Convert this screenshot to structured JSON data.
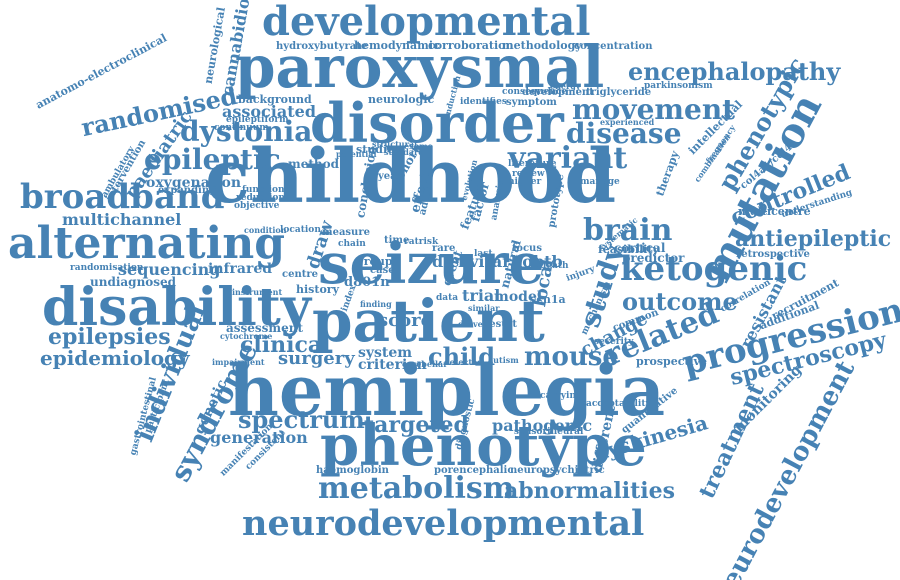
{
  "accent_color": "#4682b4",
  "words": [
    {
      "text": "childhood",
      "weight": 10
    },
    {
      "text": "hemiplegia",
      "weight": 9.6
    },
    {
      "text": "seizure",
      "weight": 9.2
    },
    {
      "text": "patient",
      "weight": 8.4
    },
    {
      "text": "paroxysmal",
      "weight": 8
    },
    {
      "text": "disorder",
      "weight": 7.6
    },
    {
      "text": "phenotype",
      "weight": 7.6
    },
    {
      "text": "disability",
      "weight": 7.4
    },
    {
      "text": "alternating",
      "weight": 6.6
    },
    {
      "text": "developmental",
      "weight": 6
    },
    {
      "text": "neurodevelopmental",
      "weight": 5.6
    },
    {
      "text": "mutation",
      "weight": 5.4
    },
    {
      "text": "progression",
      "weight": 4.8
    },
    {
      "text": "broadband",
      "weight": 4.8
    },
    {
      "text": "ketogenic",
      "weight": 4.8
    },
    {
      "text": "related",
      "weight": 4.6
    },
    {
      "text": "metabolism",
      "weight": 4.4
    },
    {
      "text": "brain",
      "weight": 4.2
    },
    {
      "text": "study",
      "weight": 4.2
    },
    {
      "text": "syndrome",
      "weight": 4
    },
    {
      "text": "individual",
      "weight": 4
    },
    {
      "text": "movement",
      "weight": 4
    },
    {
      "text": "variant",
      "weight": 4
    },
    {
      "text": "dystonia",
      "weight": 4
    },
    {
      "text": "epileptic",
      "weight": 4
    },
    {
      "text": "disease",
      "weight": 3.8
    },
    {
      "text": "neurodevelopment",
      "weight": 3.8
    },
    {
      "text": "encephalopathy",
      "weight": 3.6
    },
    {
      "text": "randomised",
      "weight": 3.6
    },
    {
      "text": "antiepileptic",
      "weight": 3.6
    },
    {
      "text": "phenotypic",
      "weight": 3.6
    },
    {
      "text": "mouse",
      "weight": 3.6
    },
    {
      "text": "outcome",
      "weight": 3.6
    },
    {
      "text": "spectrum",
      "weight": 3.6
    },
    {
      "text": "treatment",
      "weight": 3.4
    },
    {
      "text": "spectroscopy",
      "weight": 3.4
    },
    {
      "text": "abnormalities",
      "weight": 3.4
    },
    {
      "text": "controlled",
      "weight": 3.2
    },
    {
      "text": "clinical",
      "weight": 3.2
    },
    {
      "text": "epilepsies",
      "weight": 3.2
    },
    {
      "text": "targeted",
      "weight": 3.2
    },
    {
      "text": "child",
      "weight": 3.2
    },
    {
      "text": "epidemiology",
      "weight": 3
    },
    {
      "text": "dyskinesia",
      "weight": 3
    },
    {
      "text": "surgery",
      "weight": 2.8
    },
    {
      "text": "paediatric",
      "weight": 2.6
    },
    {
      "text": "resistant",
      "weight": 2.6
    },
    {
      "text": "local",
      "weight": 2.6
    },
    {
      "text": "multichannel",
      "weight": 2.6
    },
    {
      "text": "sequencing",
      "weight": 2.6
    },
    {
      "text": "change",
      "weight": 2.6
    },
    {
      "text": "score",
      "weight": 2.6
    },
    {
      "text": "generation",
      "weight": 2.4
    },
    {
      "text": "pathogenic",
      "weight": 2.4
    },
    {
      "text": "different",
      "weight": 2.4
    },
    {
      "text": "genetic",
      "weight": 2.4
    },
    {
      "text": "monitoring",
      "weight": 2.4
    },
    {
      "text": "associated",
      "weight": 2.4
    },
    {
      "text": "draw",
      "weight": 2.4
    },
    {
      "text": "kvitarhobtb",
      "weight": 2.4
    },
    {
      "text": "diet",
      "weight": 2.4
    },
    {
      "text": "cannabidiol",
      "weight": 2.2
    },
    {
      "text": "oxygenation",
      "weight": 2.2
    },
    {
      "text": "infrared",
      "weight": 2.2
    },
    {
      "text": "system",
      "weight": 2.2
    },
    {
      "text": "criterion",
      "weight": 2.2
    },
    {
      "text": "trial",
      "weight": 2.2
    },
    {
      "text": "assessment",
      "weight": 2
    },
    {
      "text": "undiagnosed",
      "weight": 2
    },
    {
      "text": "conclusion",
      "weight": 2
    },
    {
      "text": "prospective",
      "weight": 2
    },
    {
      "text": "predictor",
      "weight": 2
    },
    {
      "text": "cortical",
      "weight": 2
    },
    {
      "text": "additional",
      "weight": 2
    },
    {
      "text": "recruitment",
      "weight": 2
    },
    {
      "text": "feature",
      "weight": 2
    },
    {
      "text": "model",
      "weight": 2
    },
    {
      "text": "neurological",
      "weight": 1.8
    },
    {
      "text": "background",
      "weight": 1.8
    },
    {
      "text": "neurologic",
      "weight": 1.8
    },
    {
      "text": "methodology",
      "weight": 1.8
    },
    {
      "text": "hemodynamic",
      "weight": 1.8
    },
    {
      "text": "corroboration",
      "weight": 1.8
    },
    {
      "text": "method",
      "weight": 1.8
    },
    {
      "text": "history",
      "weight": 1.8
    },
    {
      "text": "group",
      "weight": 1.8
    },
    {
      "text": "d801n",
      "weight": 1.8
    },
    {
      "text": "scn1a",
      "weight": 1.8
    },
    {
      "text": "multicentre",
      "weight": 1.8
    },
    {
      "text": "feasibility",
      "weight": 1.8
    },
    {
      "text": "focus",
      "weight": 1.8
    },
    {
      "text": "development",
      "weight": 1.6
    },
    {
      "text": "concentration",
      "weight": 1.6
    },
    {
      "text": "hydroxybutyrate",
      "weight": 1.6
    },
    {
      "text": "triglyceride",
      "weight": 1.6
    },
    {
      "text": "anatomo-electroclinical",
      "weight": 1.6
    },
    {
      "text": "symptom",
      "weight": 1.6
    },
    {
      "text": "year",
      "weight": 1.6
    },
    {
      "text": "studies",
      "weight": 1.6
    },
    {
      "text": "time",
      "weight": 1.6
    },
    {
      "text": "rare",
      "weight": 1.6
    },
    {
      "text": "case",
      "weight": 1.6
    },
    {
      "text": "centre",
      "weight": 1.6
    },
    {
      "text": "result",
      "weight": 1.6
    },
    {
      "text": "haemoglobin",
      "weight": 1.6
    },
    {
      "text": "porencephalic",
      "weight": 1.6
    },
    {
      "text": "retrospective",
      "weight": 1.6
    },
    {
      "text": "quantitative",
      "weight": 1.6
    },
    {
      "text": "intellectual",
      "weight": 1.6
    },
    {
      "text": "therapy",
      "weight": 1.6
    },
    {
      "text": "col4a1/col4a",
      "weight": 1.6
    },
    {
      "text": "function",
      "weight": 1.4
    },
    {
      "text": "reduction",
      "weight": 1.4
    },
    {
      "text": "objective",
      "weight": 1.4
    },
    {
      "text": "expanding",
      "weight": 1.4
    },
    {
      "text": "continuum",
      "weight": 1.4
    },
    {
      "text": "randomisation",
      "weight": 1.4
    },
    {
      "text": "epileptiform",
      "weight": 1.4
    },
    {
      "text": "ambulatory",
      "weight": 1.4
    },
    {
      "text": "intervention",
      "weight": 1.4
    },
    {
      "text": "gastrointestinal",
      "weight": 1.4
    },
    {
      "text": "participant",
      "weight": 1.4
    },
    {
      "text": "diagnostic",
      "weight": 1.4
    },
    {
      "text": "manifestation",
      "weight": 1.4
    },
    {
      "text": "consistent",
      "weight": 1.4
    },
    {
      "text": "neuropsychiatric",
      "weight": 1.4
    },
    {
      "text": "sensorineural",
      "weight": 1.4
    },
    {
      "text": "acceptability",
      "weight": 1.4
    },
    {
      "text": "correlation",
      "weight": 1.4
    },
    {
      "text": "understanding",
      "weight": 1.4
    },
    {
      "text": "carrying",
      "weight": 1.4
    },
    {
      "text": "severity",
      "weight": 1.4
    },
    {
      "text": "common",
      "weight": 1.4
    },
    {
      "text": "mechanism",
      "weight": 1.4
    },
    {
      "text": "location",
      "weight": 1.4
    },
    {
      "text": "measure",
      "weight": 1.4
    },
    {
      "text": "ratrisk",
      "weight": 1.4
    },
    {
      "text": "condition",
      "weight": 1.4
    },
    {
      "text": "cytochrome",
      "weight": 1.4
    },
    {
      "text": "impairment",
      "weight": 1.4
    },
    {
      "text": "instrument",
      "weight": 1.4
    },
    {
      "text": "identifies",
      "weight": 1.4
    },
    {
      "text": "consequence",
      "weight": 1.4
    },
    {
      "text": "experienced",
      "weight": 1.4
    },
    {
      "text": "parkinsonism",
      "weight": 1.4
    },
    {
      "text": "energy",
      "weight": 1.4
    },
    {
      "text": "cohort",
      "weight": 1.6
    },
    {
      "text": "effect",
      "weight": 1.6
    },
    {
      "text": "adult",
      "weight": 1.4
    },
    {
      "text": "event",
      "weight": 1.6
    },
    {
      "text": "factor",
      "weight": 1.6
    },
    {
      "text": "analysis",
      "weight": 1.4
    },
    {
      "text": "prototype",
      "weight": 1.4
    },
    {
      "text": "injury",
      "weight": 1.4
    },
    {
      "text": "death",
      "weight": 1.4
    },
    {
      "text": "natural",
      "weight": 1.6
    },
    {
      "text": "literature",
      "weight": 1.4
    },
    {
      "text": "review",
      "weight": 1.4
    },
    {
      "text": "higher",
      "weight": 1.4
    },
    {
      "text": "manage",
      "weight": 1.4
    },
    {
      "text": "frequency",
      "weight": 1.4
    },
    {
      "text": "combination",
      "weight": 1.4
    },
    {
      "text": "conduction",
      "weight": 1.4
    },
    {
      "text": "evolution",
      "weight": 1.4
    },
    {
      "text": "similar",
      "weight": 1.4
    },
    {
      "text": "data",
      "weight": 1.4
    },
    {
      "text": "index",
      "weight": 1.4
    },
    {
      "text": "finding",
      "weight": 1.4
    },
    {
      "text": "cerebellar",
      "weight": 1.4
    },
    {
      "text": "detected",
      "weight": 1.4
    },
    {
      "text": "systematic",
      "weight": 1.4
    },
    {
      "text": "autism",
      "weight": 1.4
    },
    {
      "text": "potential",
      "weight": 1.4
    },
    {
      "text": "standard",
      "weight": 1.4
    },
    {
      "text": "structural",
      "weight": 1.4
    },
    {
      "text": "exome",
      "weight": 1.4
    },
    {
      "text": "dravet",
      "weight": 1.4
    },
    {
      "text": "last",
      "weight": 1.4
    },
    {
      "text": "chain",
      "weight": 1.4
    }
  ]
}
